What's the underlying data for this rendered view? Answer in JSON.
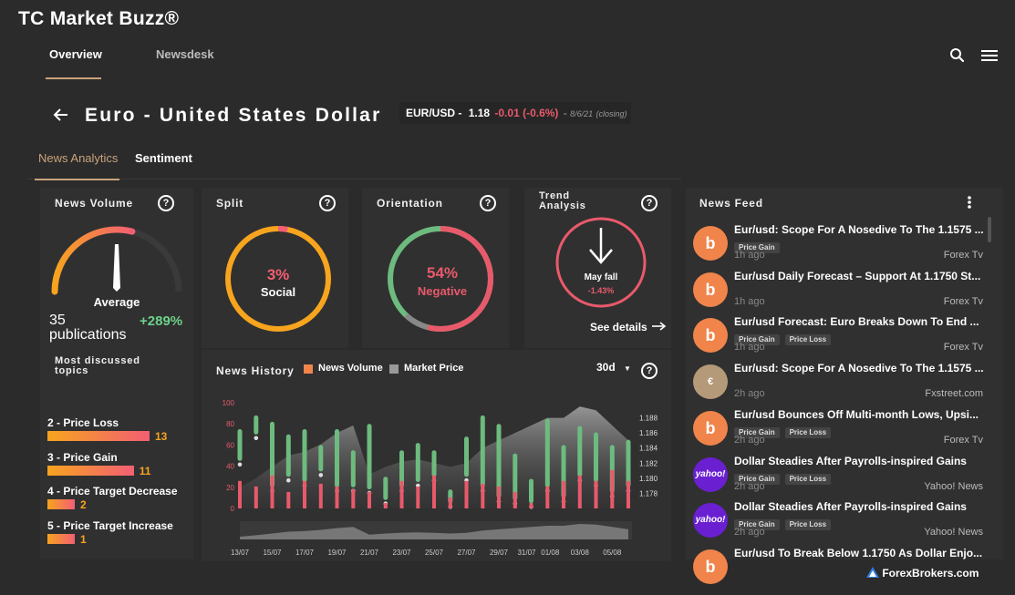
{
  "app": {
    "title": "TC Market Buzz®"
  },
  "nav": {
    "tabs": [
      {
        "label": "Overview"
      },
      {
        "label": "Newsdesk"
      }
    ]
  },
  "icons": {
    "search": "search-icon",
    "menu": "hamburger-menu-icon",
    "back": "back-arrow-icon",
    "help": "help-icon",
    "kebab": "kebab-menu-icon",
    "see_details": "arrow-right-icon"
  },
  "header": {
    "title": "Euro - United States Dollar",
    "symbol": "EUR/USD -",
    "price": "1.18",
    "change": "-0.01 (-0.6%)",
    "sep": "-",
    "date": "8/6/21",
    "status": "(closing)"
  },
  "subtabs": [
    {
      "label": "News Analytics"
    },
    {
      "label": "Sentiment"
    }
  ],
  "news_volume": {
    "title": "News Volume",
    "gauge_label": "Average",
    "count": "35",
    "count_unit": "publications",
    "change": "+289%",
    "gauge_level": 0.58
  },
  "split": {
    "title": "Split",
    "percent": "3%",
    "label": "Social",
    "social_fraction": 0.03
  },
  "orientation": {
    "title": "Orientation",
    "percent": "54%",
    "label": "Negative",
    "negative_fraction": 0.54
  },
  "trend": {
    "title_line1": "Trend",
    "title_line2": "Analysis",
    "label": "May fall",
    "value": "-1.43%",
    "see_details": "See details"
  },
  "topics": {
    "title_line1": "Most discussed",
    "title_line2": "topics",
    "items": [
      {
        "label": "2 - Price Loss",
        "value": "13",
        "count": 13
      },
      {
        "label": "3 - Price Gain",
        "value": "11",
        "count": 11
      },
      {
        "label": "4 - Price Target Decrease",
        "value": "2",
        "count": 2
      },
      {
        "label": "5 - Price Target Increase",
        "value": "1",
        "count": 1
      }
    ]
  },
  "news_history": {
    "title": "News History",
    "legend_volume": "News Volume",
    "legend_price": "Market Price",
    "range": "30d"
  },
  "chart_data": {
    "type": "bar",
    "title": "News History",
    "categories": [
      "13/07",
      "14/07",
      "15/07",
      "16/07",
      "17/07",
      "18/07",
      "19/07",
      "20/07",
      "21/07",
      "22/07",
      "23/07",
      "24/07",
      "25/07",
      "26/07",
      "27/07",
      "28/07",
      "29/07",
      "30/07",
      "31/07",
      "01/08",
      "02/08",
      "03/08",
      "04/08",
      "05/08",
      "06/08"
    ],
    "tick_labels": [
      "13/07",
      "15/07",
      "17/07",
      "19/07",
      "21/07",
      "23/07",
      "25/07",
      "27/07",
      "29/07",
      "31/07",
      "01/08",
      "03/08",
      "05/08"
    ],
    "series": [
      {
        "name": "News Volume",
        "axis": "left",
        "values": [
          10,
          8,
          12,
          6,
          10,
          9,
          8,
          7,
          6,
          2,
          10,
          8,
          12,
          4,
          10,
          9,
          8,
          6,
          2,
          8,
          10,
          12,
          10,
          14,
          10
        ]
      },
      {
        "name": "Market Price",
        "axis": "right",
        "type": "area",
        "values": [
          1.1788,
          1.18,
          1.1815,
          1.183,
          1.1835,
          1.1845,
          1.186,
          1.187,
          1.1805,
          1.1815,
          1.1822,
          1.1825,
          1.182,
          1.1815,
          1.182,
          1.184,
          1.185,
          1.186,
          1.187,
          1.188,
          1.188,
          1.1895,
          1.189,
          1.187,
          1.185
        ]
      }
    ],
    "candles": [
      [
        45,
        75
      ],
      [
        70,
        88
      ],
      [
        20,
        82
      ],
      [
        30,
        70
      ],
      [
        25,
        75
      ],
      [
        35,
        60
      ],
      [
        20,
        75
      ],
      [
        20,
        55
      ],
      [
        18,
        80
      ],
      [
        8,
        30
      ],
      [
        20,
        55
      ],
      [
        25,
        62
      ],
      [
        30,
        55
      ],
      [
        5,
        18
      ],
      [
        30,
        68
      ],
      [
        20,
        88
      ],
      [
        10,
        80
      ],
      [
        8,
        52
      ],
      [
        5,
        28
      ],
      [
        20,
        85
      ],
      [
        10,
        60
      ],
      [
        30,
        78
      ],
      [
        25,
        72
      ],
      [
        15,
        60
      ],
      [
        20,
        65
      ]
    ],
    "ylim_left": [
      0,
      100
    ],
    "yticks_left": [
      "0",
      "20",
      "40",
      "60",
      "80",
      "100"
    ],
    "ylim_right": [
      1.176,
      1.19
    ],
    "yticks_right": [
      "1.178",
      "1.180",
      "1.182",
      "1.184",
      "1.186",
      "1.188"
    ],
    "legend": "top",
    "colors": {
      "volume": "#e85a6b",
      "volume_legend": "#f0844b",
      "price_area": "#8a8a8a",
      "candle": "#6dbb7f"
    }
  },
  "news_feed": {
    "title": "News Feed",
    "items": [
      {
        "headline": "Eur/usd: Scope For A Nosedive To The 1.1575 ...",
        "tags": [
          "Price Gain"
        ],
        "time": "1h ago",
        "source": "Forex Tv",
        "logo": "b",
        "logo_color": "#f0844b"
      },
      {
        "headline": "Eur/usd Daily Forecast – Support At 1.1750 St...",
        "tags": [],
        "time": "1h ago",
        "source": "Forex Tv",
        "logo": "b",
        "logo_color": "#f0844b"
      },
      {
        "headline": "Eur/usd Forecast: Euro Breaks Down To End ...",
        "tags": [
          "Price Gain",
          "Price Loss"
        ],
        "time": "1h ago",
        "source": "Forex Tv",
        "logo": "b",
        "logo_color": "#f0844b"
      },
      {
        "headline": "Eur/usd: Scope For A Nosedive To The 1.1575 ...",
        "tags": [],
        "time": "2h ago",
        "source": "Fxstreet.com",
        "logo": "€",
        "logo_color": "#b59a7a"
      },
      {
        "headline": "Eur/usd Bounces Off Multi-month Lows, Upsi...",
        "tags": [
          "Price Gain",
          "Price Loss"
        ],
        "time": "2h ago",
        "source": "Forex Tv",
        "logo": "b",
        "logo_color": "#f0844b"
      },
      {
        "headline": "Dollar Steadies After Payrolls-inspired Gains",
        "tags": [
          "Price Gain",
          "Price Loss"
        ],
        "time": "2h ago",
        "source": "Yahoo! News",
        "logo": "yahoo!",
        "logo_color": "#6a1fd1"
      },
      {
        "headline": "Dollar Steadies After Payrolls-inspired Gains",
        "tags": [
          "Price Gain",
          "Price Loss"
        ],
        "time": "2h ago",
        "source": "Yahoo! News",
        "logo": "yahoo!",
        "logo_color": "#6a1fd1"
      },
      {
        "headline": "Eur/usd To Break Below 1.1750 As Dollar Enjo...",
        "tags": [],
        "time": "",
        "source": "",
        "logo": "b",
        "logo_color": "#f0844b"
      }
    ]
  },
  "watermark": {
    "text": "ForexBrokers.com"
  },
  "colors": {
    "accent": "#c9a37a",
    "positive": "#6dd08a",
    "negative": "#e85a6b",
    "orange": "#f7a41e"
  }
}
